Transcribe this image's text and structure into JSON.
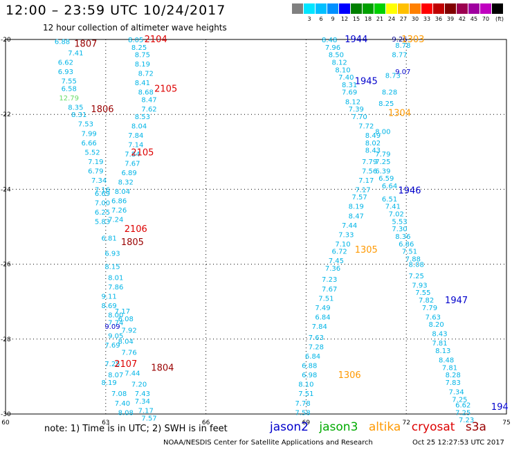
{
  "title": "12:00 – 23:59 UTC 10/24/2017",
  "subtitle": "12 hour collection of altimeter wave heights",
  "scale": {
    "unit": "(ft)",
    "colors": [
      "#808080",
      "#00e5ff",
      "#00bfff",
      "#0090ff",
      "#0000ff",
      "#008000",
      "#00a000",
      "#00d000",
      "#ffff00",
      "#ffc000",
      "#ff8000",
      "#ff0000",
      "#c00000",
      "#800000",
      "#9b0050",
      "#a000a0",
      "#c000c0",
      "#000000"
    ],
    "labels": [
      "3",
      "6",
      "9",
      "12",
      "15",
      "18",
      "21",
      "24",
      "27",
      "30",
      "33",
      "36",
      "39",
      "42",
      "45",
      "70"
    ]
  },
  "footer_note": "note: 1) Time is in UTC; 2) SWH is in feet",
  "legend": [
    {
      "name": "jason2",
      "color": "#0000cc"
    },
    {
      "name": "jason3",
      "color": "#00aa00"
    },
    {
      "name": "altika",
      "color": "#ff9900"
    },
    {
      "name": "cryosat",
      "color": "#dd0000"
    },
    {
      "name": "s3a",
      "color": "#990000"
    }
  ],
  "credit": "NOAA/NESDIS Center for Satellite Applications and Research",
  "timestamp": "Oct 25 12:27:53 UTC 2017",
  "chart_data": {
    "type": "scatter",
    "title": "12:00 – 23:59 UTC 10/24/2017",
    "xlim": [
      60,
      75
    ],
    "ylim": [
      -30,
      -20
    ],
    "x_ticks": [
      "60",
      "63",
      "66",
      "69",
      "72",
      "75"
    ],
    "y_ticks": [
      "-20",
      "-22",
      "-24",
      "-26",
      "-28",
      "-30"
    ],
    "grid": true,
    "time_labels": [
      {
        "text": "2104",
        "x": 64.5,
        "y": -19.98,
        "color": "#dd0000"
      },
      {
        "text": "1807",
        "x": 62.4,
        "y": -20.1,
        "color": "#990000"
      },
      {
        "text": "2105",
        "x": 64.8,
        "y": -21.3,
        "color": "#dd0000"
      },
      {
        "text": "1806",
        "x": 62.9,
        "y": -21.85,
        "color": "#990000"
      },
      {
        "text": "2105",
        "x": 64.1,
        "y": -23.0,
        "color": "#dd0000"
      },
      {
        "text": "2106",
        "x": 63.9,
        "y": -25.05,
        "color": "#dd0000"
      },
      {
        "text": "1805",
        "x": 63.8,
        "y": -25.4,
        "color": "#990000"
      },
      {
        "text": "2107",
        "x": 63.6,
        "y": -28.65,
        "color": "#dd0000"
      },
      {
        "text": "1804",
        "x": 64.7,
        "y": -28.75,
        "color": "#990000"
      },
      {
        "text": "1944",
        "x": 70.5,
        "y": -19.98,
        "color": "#0000cc"
      },
      {
        "text": "1303",
        "x": 72.2,
        "y": -19.98,
        "color": "#ff9900"
      },
      {
        "text": "1945",
        "x": 70.8,
        "y": -21.1,
        "color": "#0000cc"
      },
      {
        "text": "1304",
        "x": 71.8,
        "y": -21.95,
        "color": "#ff9900"
      },
      {
        "text": "1946",
        "x": 72.1,
        "y": -24.02,
        "color": "#0000cc"
      },
      {
        "text": "1305",
        "x": 70.8,
        "y": -25.6,
        "color": "#ff9900"
      },
      {
        "text": "1947",
        "x": 73.5,
        "y": -26.95,
        "color": "#0000cc"
      },
      {
        "text": "1306",
        "x": 70.3,
        "y": -28.95,
        "color": "#ff9900"
      },
      {
        "text": "194",
        "x": 74.8,
        "y": -29.8,
        "color": "#0000cc"
      }
    ],
    "series": [
      {
        "color": "#00b4e6",
        "points": [
          [
            61.7,
            -20.05,
            "6.88"
          ],
          [
            62.1,
            -20.35,
            "7.41"
          ],
          [
            61.8,
            -20.6,
            "6.62"
          ],
          [
            61.8,
            -20.85,
            "6.93"
          ],
          [
            61.9,
            -21.1,
            "7.55"
          ],
          [
            61.9,
            -21.3,
            "6.58"
          ],
          [
            62.1,
            -21.8,
            "8.35"
          ],
          [
            62.2,
            -22.0,
            "8.31"
          ],
          [
            62.4,
            -22.25,
            "7.53"
          ],
          [
            62.5,
            -22.5,
            "7.99"
          ],
          [
            62.5,
            -22.75,
            "6.66"
          ],
          [
            62.6,
            -23.0,
            "5.52"
          ],
          [
            62.7,
            -23.25,
            "7.19"
          ],
          [
            62.7,
            -23.5,
            "6.79"
          ],
          [
            62.8,
            -23.75,
            "7.34"
          ],
          [
            62.9,
            -24.0,
            "7.16"
          ],
          [
            62.9,
            -24.1,
            "6.69"
          ],
          [
            62.9,
            -24.35,
            "7.00"
          ],
          [
            62.9,
            -24.6,
            "6.25"
          ],
          [
            62.9,
            -24.85,
            "5.83"
          ],
          [
            63.1,
            -25.3,
            "6.81"
          ],
          [
            63.2,
            -25.7,
            "6.93"
          ],
          [
            63.2,
            -26.05,
            "8.15"
          ],
          [
            63.3,
            -26.35,
            "8.01"
          ],
          [
            63.3,
            -26.6,
            "7.86"
          ],
          [
            63.1,
            -26.85,
            "9.11"
          ],
          [
            63.1,
            -27.1,
            "8.69"
          ],
          [
            63.3,
            -27.35,
            "8.00"
          ],
          [
            63.3,
            -27.55,
            "7.74"
          ],
          [
            63.3,
            -27.9,
            "9.05"
          ],
          [
            63.2,
            -28.15,
            "7.69"
          ],
          [
            63.2,
            -28.65,
            "7.25"
          ],
          [
            63.3,
            -28.95,
            "8.07"
          ],
          [
            63.1,
            -29.15,
            "8.19"
          ],
          [
            63.4,
            -29.45,
            "7.08"
          ],
          [
            63.5,
            -29.7,
            "7.40"
          ],
          [
            63.6,
            -29.95,
            "8.08"
          ]
        ]
      },
      {
        "color": "#00b4e6",
        "points": [
          [
            63.9,
            -20.0,
            "8.05"
          ],
          [
            64.0,
            -20.2,
            "8.25"
          ],
          [
            64.1,
            -20.4,
            "8.75"
          ],
          [
            64.1,
            -20.65,
            "8.19"
          ],
          [
            64.2,
            -20.9,
            "8.72"
          ],
          [
            64.1,
            -21.15,
            "8.41"
          ],
          [
            64.2,
            -21.4,
            "8.68"
          ],
          [
            64.3,
            -21.6,
            "8.47"
          ],
          [
            64.3,
            -21.85,
            "7.62"
          ],
          [
            64.1,
            -22.05,
            "8.53"
          ],
          [
            64.0,
            -22.3,
            "8.04"
          ],
          [
            63.9,
            -22.55,
            "7.84"
          ],
          [
            63.9,
            -22.8,
            "7.14"
          ],
          [
            63.8,
            -23.05,
            "7.84"
          ],
          [
            63.8,
            -23.3,
            "7.67"
          ],
          [
            63.7,
            -23.55,
            "6.89"
          ],
          [
            63.6,
            -23.8,
            "8.32"
          ],
          [
            63.5,
            -24.05,
            "8.04"
          ],
          [
            63.4,
            -24.3,
            "6.86"
          ],
          [
            63.4,
            -24.55,
            "7.26"
          ],
          [
            63.3,
            -24.8,
            "7.24"
          ],
          [
            63.5,
            -27.25,
            "7.17"
          ],
          [
            63.6,
            -27.45,
            "6.08"
          ],
          [
            63.7,
            -27.75,
            "7.92"
          ],
          [
            63.6,
            -28.05,
            "8.04"
          ],
          [
            63.7,
            -28.35,
            "7.76"
          ],
          [
            63.8,
            -28.9,
            "7.44"
          ],
          [
            64.0,
            -29.2,
            "7.20"
          ],
          [
            64.1,
            -29.45,
            "7.43"
          ],
          [
            64.1,
            -29.65,
            "7.34"
          ],
          [
            64.2,
            -29.9,
            "7.17"
          ],
          [
            64.3,
            -30.1,
            "7.57"
          ]
        ]
      },
      {
        "color": "#00b4e6",
        "points": [
          [
            69.7,
            -20.0,
            "8.48"
          ],
          [
            69.8,
            -20.2,
            "7.96"
          ],
          [
            69.9,
            -20.4,
            "8.50"
          ],
          [
            70.0,
            -20.6,
            "8.12"
          ],
          [
            70.1,
            -20.8,
            "8.10"
          ],
          [
            70.2,
            -21.0,
            "7.40"
          ],
          [
            70.3,
            -21.2,
            "8.31"
          ],
          [
            70.3,
            -21.4,
            "7.69"
          ],
          [
            70.4,
            -21.65,
            "8.12"
          ],
          [
            70.5,
            -21.85,
            "7.39"
          ],
          [
            70.6,
            -22.05,
            "7.70"
          ],
          [
            70.8,
            -22.3,
            "7.72"
          ],
          [
            71.0,
            -22.55,
            "8.49"
          ],
          [
            71.0,
            -22.75,
            "8.02"
          ],
          [
            71.0,
            -22.95,
            "8.43"
          ],
          [
            70.9,
            -23.25,
            "7.79"
          ],
          [
            70.9,
            -23.5,
            "7.56"
          ],
          [
            70.8,
            -23.75,
            "7.17"
          ],
          [
            70.7,
            -24.0,
            "7.17"
          ],
          [
            70.6,
            -24.2,
            "7.57"
          ],
          [
            70.5,
            -24.45,
            "8.19"
          ],
          [
            70.5,
            -24.7,
            "8.47"
          ],
          [
            70.3,
            -24.95,
            "7.44"
          ],
          [
            70.2,
            -25.2,
            "7.33"
          ],
          [
            70.1,
            -25.45,
            "7.10"
          ],
          [
            70.0,
            -25.65,
            "6.72"
          ],
          [
            69.9,
            -25.9,
            "7.45"
          ],
          [
            69.8,
            -26.1,
            "7.36"
          ],
          [
            69.7,
            -26.4,
            "7.23"
          ],
          [
            69.7,
            -26.65,
            "7.67"
          ],
          [
            69.6,
            -26.9,
            "7.51"
          ],
          [
            69.5,
            -27.15,
            "7.49"
          ],
          [
            69.5,
            -27.4,
            "6.84"
          ],
          [
            69.4,
            -27.65,
            "7.84"
          ],
          [
            69.3,
            -27.95,
            "7.63"
          ],
          [
            69.3,
            -28.2,
            "7.28"
          ],
          [
            69.2,
            -28.45,
            "6.84"
          ],
          [
            69.1,
            -28.7,
            "6.88"
          ],
          [
            69.1,
            -28.95,
            "6.98"
          ],
          [
            69.0,
            -29.2,
            "8.10"
          ],
          [
            69.0,
            -29.45,
            "7.51"
          ],
          [
            68.9,
            -29.7,
            "7.78"
          ],
          [
            68.9,
            -29.95,
            "7.58"
          ]
        ]
      },
      {
        "color": "#00b4e6",
        "points": [
          [
            71.9,
            -20.15,
            "8.78"
          ],
          [
            71.8,
            -20.4,
            "8.77"
          ],
          [
            71.6,
            -20.95,
            "8.73"
          ],
          [
            71.5,
            -21.4,
            "8.28"
          ],
          [
            71.4,
            -21.7,
            "8.25"
          ],
          [
            71.3,
            -22.45,
            "8.00"
          ],
          [
            71.3,
            -23.05,
            "7.79"
          ],
          [
            71.3,
            -23.25,
            "7.25"
          ],
          [
            71.3,
            -23.5,
            "6.39"
          ],
          [
            71.4,
            -23.7,
            "6.59"
          ],
          [
            71.5,
            -23.9,
            "6.64"
          ],
          [
            71.5,
            -24.25,
            "6.51"
          ],
          [
            71.6,
            -24.45,
            "7.41"
          ],
          [
            71.7,
            -24.65,
            "7.02"
          ],
          [
            71.8,
            -24.85,
            "5.53"
          ],
          [
            71.8,
            -25.05,
            "7.30"
          ],
          [
            71.9,
            -25.25,
            "8.36"
          ],
          [
            72.0,
            -25.45,
            "6.86"
          ],
          [
            72.1,
            -25.65,
            "7.51"
          ],
          [
            72.2,
            -25.85,
            "7.88"
          ],
          [
            72.3,
            -26.0,
            "8.08"
          ],
          [
            72.3,
            -26.3,
            "7.25"
          ],
          [
            72.4,
            -26.55,
            "7.93"
          ],
          [
            72.5,
            -26.75,
            "7.55"
          ],
          [
            72.6,
            -26.95,
            "7.82"
          ],
          [
            72.7,
            -27.15,
            "7.79"
          ],
          [
            72.8,
            -27.4,
            "7.63"
          ],
          [
            72.9,
            -27.6,
            "8.20"
          ],
          [
            73.0,
            -27.85,
            "8.43"
          ],
          [
            73.0,
            -28.1,
            "7.81"
          ],
          [
            73.1,
            -28.3,
            "8.13"
          ],
          [
            73.2,
            -28.55,
            "8.48"
          ],
          [
            73.3,
            -28.75,
            "7.81"
          ],
          [
            73.4,
            -28.95,
            "8.28"
          ],
          [
            73.4,
            -29.15,
            "7.83"
          ],
          [
            73.5,
            -29.4,
            "7.34"
          ],
          [
            73.6,
            -29.6,
            "7.25"
          ],
          [
            73.7,
            -29.75,
            "6.62"
          ],
          [
            73.7,
            -29.95,
            "7.25"
          ],
          [
            73.8,
            -30.15,
            "7.23"
          ]
        ]
      },
      {
        "color": "#0000cc",
        "points": [
          [
            71.9,
            -20.85,
            "9.07"
          ],
          [
            63.2,
            -27.65,
            "9.09"
          ]
        ]
      },
      {
        "color": "#00008b",
        "points": [
          [
            71.8,
            -19.98,
            "9.26"
          ]
        ]
      },
      {
        "color": "#66dd66",
        "points": [
          [
            61.9,
            -21.55,
            "12.79"
          ]
        ]
      }
    ]
  }
}
